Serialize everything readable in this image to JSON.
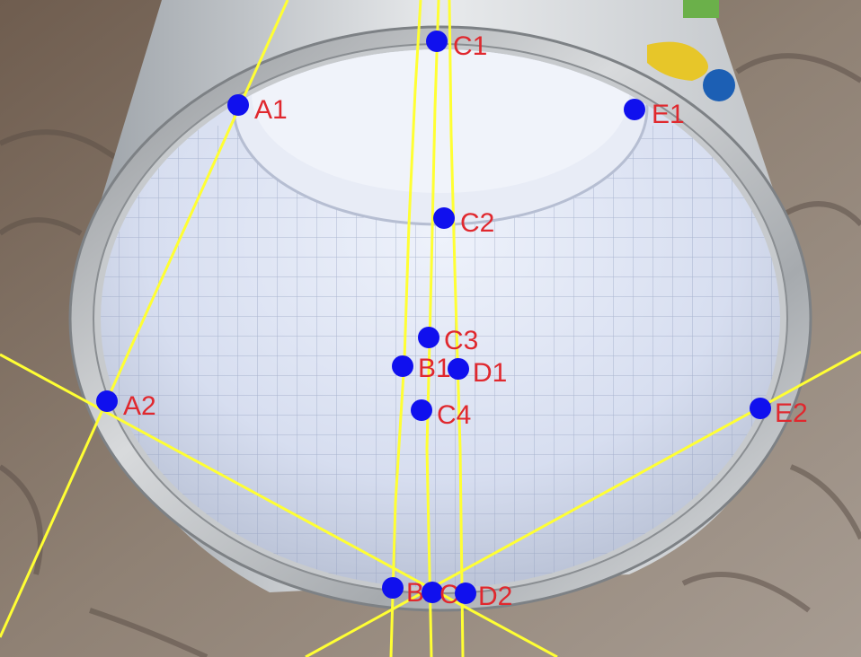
{
  "colors": {
    "point_fill": "#1010ee",
    "label_fill": "#e0282e",
    "line_stroke": "#ffff33",
    "rim_metal": "#b9bcbf",
    "can_interior": "#dfe6f6",
    "grid_line": "#9aa4c0",
    "tablecloth": "#8a7b6c"
  },
  "points": [
    {
      "id": "A1",
      "label": "A1"
    },
    {
      "id": "A2",
      "label": "A2"
    },
    {
      "id": "B1",
      "label": "B1"
    },
    {
      "id": "B2",
      "label": "B2"
    },
    {
      "id": "C1",
      "label": "C1"
    },
    {
      "id": "C2",
      "label": "C2"
    },
    {
      "id": "C3",
      "label": "C3"
    },
    {
      "id": "C4",
      "label": "C4"
    },
    {
      "id": "C5",
      "label": "C5"
    },
    {
      "id": "D1",
      "label": "D1"
    },
    {
      "id": "D2",
      "label": "D2"
    },
    {
      "id": "E1",
      "label": "E1"
    },
    {
      "id": "E2",
      "label": "E2"
    }
  ]
}
